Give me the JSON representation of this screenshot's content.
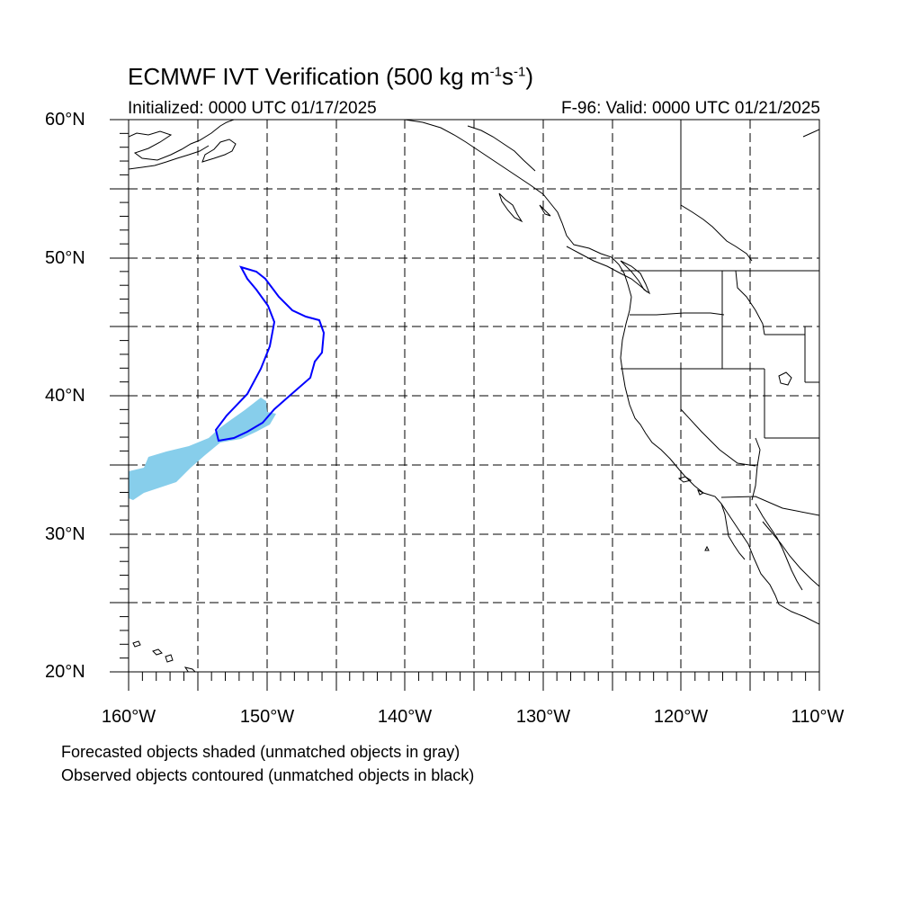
{
  "title": {
    "main": "ECMWF IVT Verification (500 kg m",
    "sup1": "-1",
    "mid": "s",
    "sup2": "-1",
    "end": ")"
  },
  "initialized": "Initialized: 0000 UTC 01/17/2025",
  "valid": "F-96: Valid: 0000 UTC 01/21/2025",
  "lat_labels": [
    "60°N",
    "50°N",
    "40°N",
    "30°N",
    "20°N"
  ],
  "lon_labels": [
    "160°W",
    "150°W",
    "140°W",
    "130°W",
    "120°W",
    "110°W"
  ],
  "notes": [
    "Forecasted objects shaded (unmatched objects in gray)",
    "Observed objects contoured (unmatched objects in black)"
  ],
  "colors": {
    "forecast_fill": "#87CEEB",
    "observed_contour": "#0000FF",
    "coastline": "#000000",
    "grid": "#000000"
  }
}
